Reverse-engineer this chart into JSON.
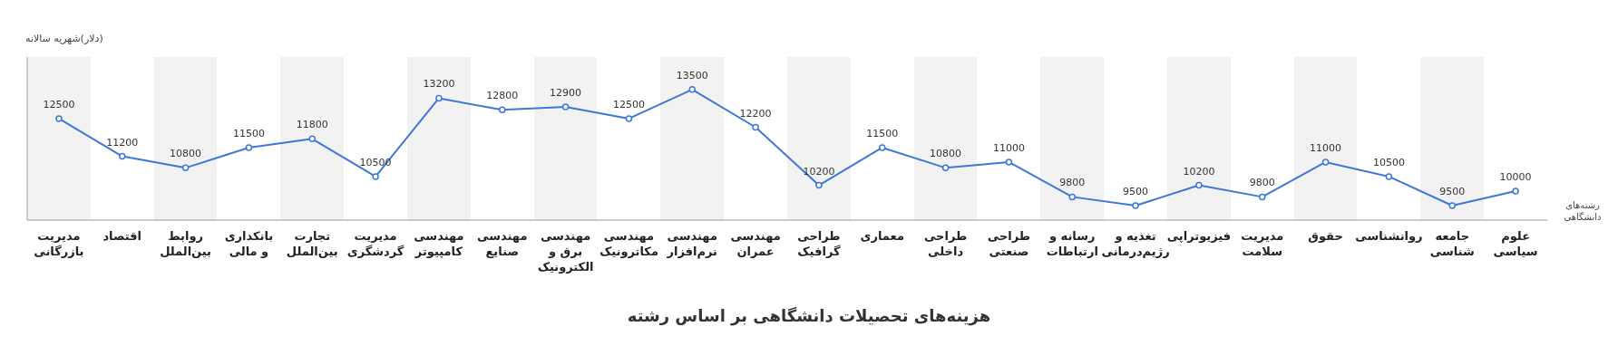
{
  "chart_data": {
    "type": "line",
    "title": "هزینه‌های تحصیلات دانشگاهی بر اساس رشته",
    "xlabel": "رشته‌های دانشگاهی",
    "ylabel": "(دلار)شهریه سالانه",
    "categories": [
      "مدیریت بازرگانی",
      "اقتصاد",
      "روابط بین‌الملل",
      "بانکداری و مالی",
      "تجارت بین‌الملل",
      "مدیریت گردشگری",
      "مهندسی کامپیوتر",
      "مهندسی صنایع",
      "مهندسی برق و الکترونیک",
      "مهندسی مکاترونیک",
      "مهندسی نرم‌افزار",
      "مهندسی عمران",
      "طراحی گرافیک",
      "معماری",
      "طراحی داخلی",
      "طراحی صنعتی",
      "رسانه و ارتباطات",
      "تغذیه و رژیم‌درمانی",
      "فیزیوتراپی",
      "مدیریت سلامت",
      "حقوق",
      "روانشناسی",
      "جامعه شناسی",
      "علوم سیاسی"
    ],
    "series": [
      {
        "color": "#3c78d8",
        "values": [
          12500,
          11200,
          10800,
          11500,
          11800,
          10500,
          13200,
          12800,
          12900,
          12500,
          13500,
          12200,
          10200,
          11500,
          10800,
          11000,
          9800,
          9500,
          10200,
          9800,
          11000,
          10500,
          9500,
          10000
        ]
      }
    ],
    "data_labels": true,
    "marker": "circle",
    "tick_labels": "x"
  }
}
